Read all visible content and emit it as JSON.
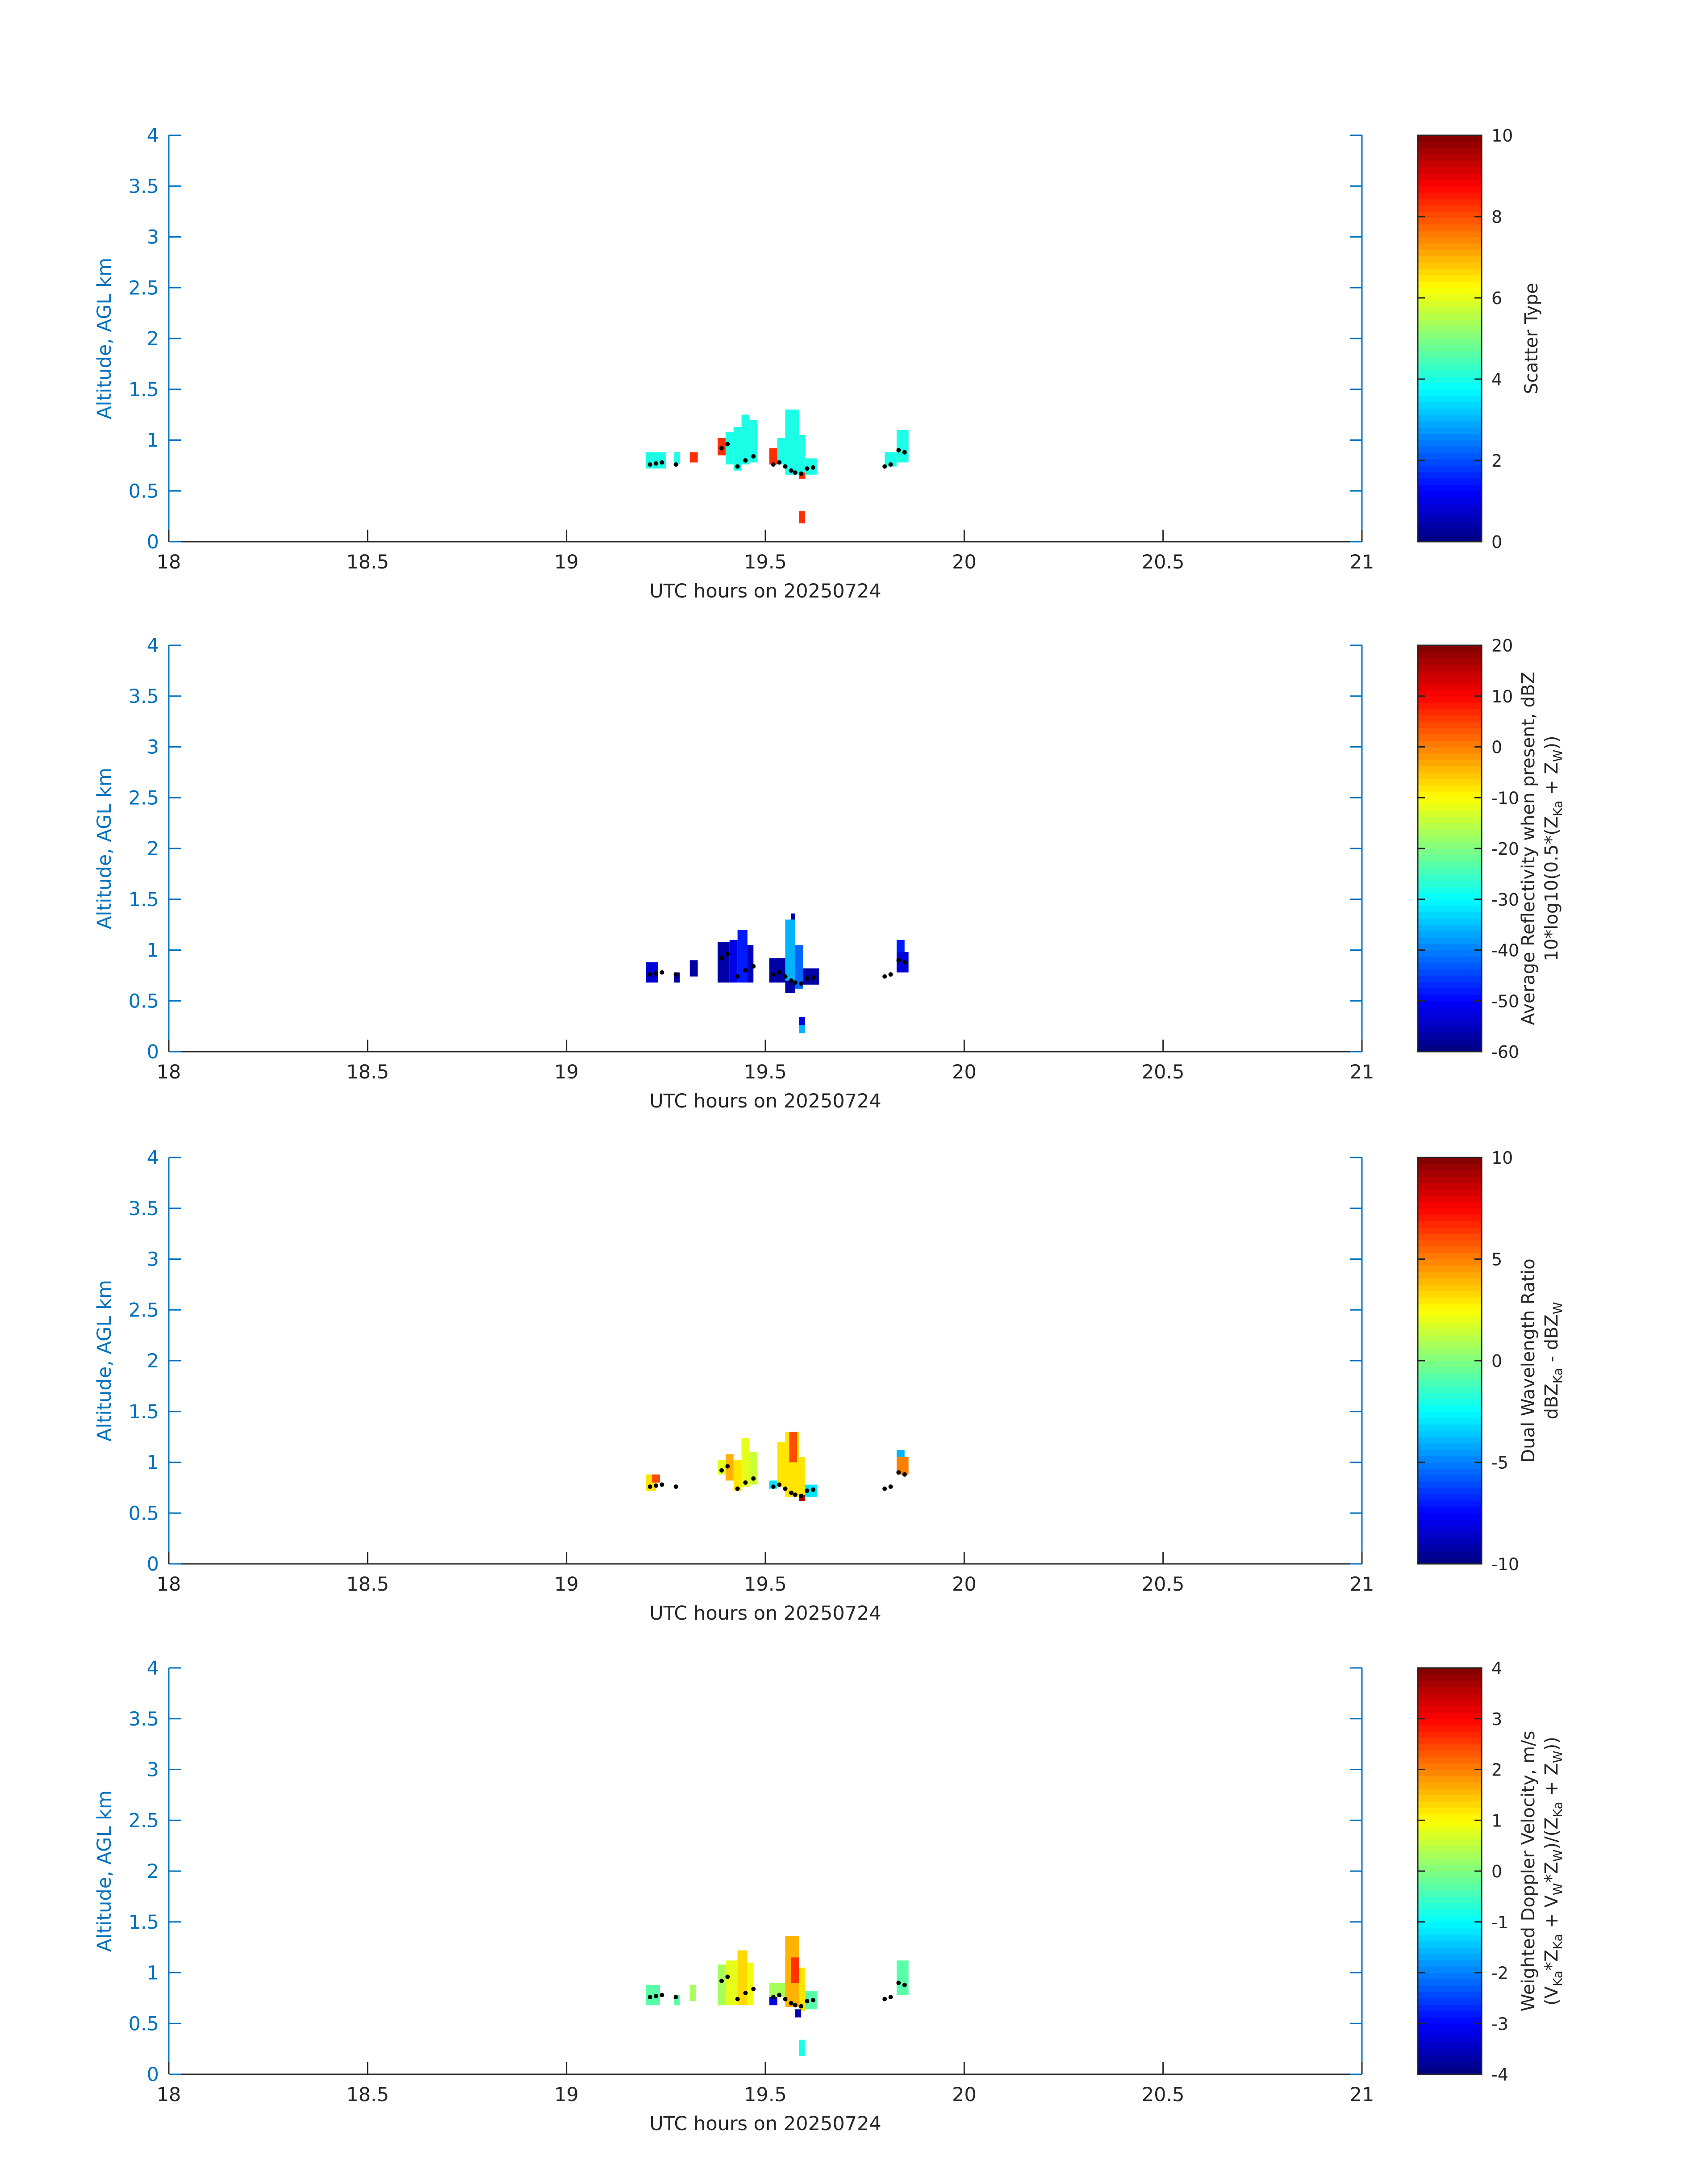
{
  "axes_color": "#0072BD",
  "colormap": "jet",
  "chart_data": [
    {
      "type": "heatmap",
      "xlabel": "UTC hours on 20250724",
      "ylabel": "Altitude, AGL km",
      "xlim": [
        18,
        21
      ],
      "ylim": [
        0,
        4
      ],
      "xticks": [
        "18",
        "18.5",
        "19",
        "19.5",
        "20",
        "20.5",
        "21"
      ],
      "yticks": [
        "0",
        "0.5",
        "1",
        "1.5",
        "2",
        "2.5",
        "3",
        "3.5",
        "4"
      ],
      "colorbar": {
        "label": [
          "Scatter Type"
        ],
        "range": [
          0,
          10
        ],
        "ticks": [
          "0",
          "2",
          "4",
          "6",
          "8",
          "10"
        ]
      },
      "cells": [
        {
          "x0": 19.2,
          "x1": 19.25,
          "y0": 0.72,
          "y1": 0.88,
          "v": 4
        },
        {
          "x0": 19.27,
          "x1": 19.285,
          "y0": 0.76,
          "y1": 0.88,
          "v": 4
        },
        {
          "x0": 19.31,
          "x1": 19.33,
          "y0": 0.78,
          "y1": 0.88,
          "v": 8.3
        },
        {
          "x0": 19.38,
          "x1": 19.4,
          "y0": 0.85,
          "y1": 1.02,
          "v": 8.3
        },
        {
          "x0": 19.4,
          "x1": 19.42,
          "y0": 0.76,
          "y1": 1.08,
          "v": 4
        },
        {
          "x0": 19.42,
          "x1": 19.44,
          "y0": 0.7,
          "y1": 1.13,
          "v": 4
        },
        {
          "x0": 19.44,
          "x1": 19.46,
          "y0": 0.76,
          "y1": 1.25,
          "v": 4
        },
        {
          "x0": 19.46,
          "x1": 19.48,
          "y0": 0.78,
          "y1": 1.2,
          "v": 4
        },
        {
          "x0": 19.51,
          "x1": 19.53,
          "y0": 0.76,
          "y1": 0.92,
          "v": 8.3
        },
        {
          "x0": 19.53,
          "x1": 19.55,
          "y0": 0.76,
          "y1": 1.02,
          "v": 4
        },
        {
          "x0": 19.55,
          "x1": 19.585,
          "y0": 0.66,
          "y1": 1.3,
          "v": 4
        },
        {
          "x0": 19.585,
          "x1": 19.6,
          "y0": 0.66,
          "y1": 1.05,
          "v": 4
        },
        {
          "x0": 19.585,
          "x1": 19.6,
          "y0": 0.62,
          "y1": 0.68,
          "v": 8.3
        },
        {
          "x0": 19.6,
          "x1": 19.63,
          "y0": 0.66,
          "y1": 0.82,
          "v": 4
        },
        {
          "x0": 19.585,
          "x1": 19.6,
          "y0": 0.18,
          "y1": 0.3,
          "v": 8.3
        },
        {
          "x0": 19.8,
          "x1": 19.83,
          "y0": 0.74,
          "y1": 0.88,
          "v": 4
        },
        {
          "x0": 19.83,
          "x1": 19.86,
          "y0": 0.78,
          "y1": 1.1,
          "v": 4
        }
      ]
    },
    {
      "type": "heatmap",
      "xlabel": "UTC hours on 20250724",
      "ylabel": "Altitude, AGL km",
      "xlim": [
        18,
        21
      ],
      "ylim": [
        0,
        4
      ],
      "xticks": [
        "18",
        "18.5",
        "19",
        "19.5",
        "20",
        "20.5",
        "21"
      ],
      "yticks": [
        "0",
        "0.5",
        "1",
        "1.5",
        "2",
        "2.5",
        "3",
        "3.5",
        "4"
      ],
      "colorbar": {
        "label": [
          "Average Reflectivity when present, dBZ",
          "10*log10(0.5*(Z",
          "Ka",
          " + Z",
          "W",
          "))"
        ],
        "range": [
          -60,
          20
        ],
        "ticks": [
          "-60",
          "-50",
          "-40",
          "-30",
          "-20",
          "-10",
          "0",
          "10",
          "20"
        ]
      },
      "cells": [
        {
          "x0": 19.2,
          "x1": 19.23,
          "y0": 0.68,
          "y1": 0.88,
          "v": -53
        },
        {
          "x0": 19.27,
          "x1": 19.285,
          "y0": 0.68,
          "y1": 0.78,
          "v": -57
        },
        {
          "x0": 19.31,
          "x1": 19.33,
          "y0": 0.74,
          "y1": 0.9,
          "v": -57
        },
        {
          "x0": 19.38,
          "x1": 19.41,
          "y0": 0.68,
          "y1": 1.08,
          "v": -57
        },
        {
          "x0": 19.41,
          "x1": 19.43,
          "y0": 0.68,
          "y1": 1.1,
          "v": -52
        },
        {
          "x0": 19.43,
          "x1": 19.455,
          "y0": 0.68,
          "y1": 1.2,
          "v": -48
        },
        {
          "x0": 19.455,
          "x1": 19.47,
          "y0": 0.68,
          "y1": 1.05,
          "v": -55
        },
        {
          "x0": 19.51,
          "x1": 19.55,
          "y0": 0.68,
          "y1": 0.92,
          "v": -57
        },
        {
          "x0": 19.55,
          "x1": 19.575,
          "y0": 0.7,
          "y1": 1.3,
          "v": -36
        },
        {
          "x0": 19.575,
          "x1": 19.595,
          "y0": 0.62,
          "y1": 1.05,
          "v": -42
        },
        {
          "x0": 19.565,
          "x1": 19.575,
          "y0": 1.3,
          "y1": 1.36,
          "v": -57
        },
        {
          "x0": 19.55,
          "x1": 19.575,
          "y0": 0.58,
          "y1": 0.7,
          "v": -57
        },
        {
          "x0": 19.595,
          "x1": 19.635,
          "y0": 0.66,
          "y1": 0.82,
          "v": -57
        },
        {
          "x0": 19.585,
          "x1": 19.6,
          "y0": 0.18,
          "y1": 0.26,
          "v": -36
        },
        {
          "x0": 19.585,
          "x1": 19.6,
          "y0": 0.26,
          "y1": 0.34,
          "v": -52
        },
        {
          "x0": 19.83,
          "x1": 19.86,
          "y0": 0.78,
          "y1": 0.98,
          "v": -53
        },
        {
          "x0": 19.83,
          "x1": 19.85,
          "y0": 0.98,
          "y1": 1.1,
          "v": -48
        }
      ]
    },
    {
      "type": "heatmap",
      "xlabel": "UTC hours on 20250724",
      "ylabel": "Altitude, AGL km",
      "xlim": [
        18,
        21
      ],
      "ylim": [
        0,
        4
      ],
      "xticks": [
        "18",
        "18.5",
        "19",
        "19.5",
        "20",
        "20.5",
        "21"
      ],
      "yticks": [
        "0",
        "0.5",
        "1",
        "1.5",
        "2",
        "2.5",
        "3",
        "3.5",
        "4"
      ],
      "colorbar": {
        "label": [
          "Dual Wavelength Ratio",
          "dBZ",
          "Ka",
          " - dBZ",
          "W",
          ""
        ],
        "range": [
          -10,
          10
        ],
        "ticks": [
          "-10",
          "-5",
          "0",
          "5",
          "10"
        ]
      },
      "cells": [
        {
          "x0": 19.2,
          "x1": 19.225,
          "y0": 0.72,
          "y1": 0.88,
          "v": 3
        },
        {
          "x0": 19.215,
          "x1": 19.235,
          "y0": 0.8,
          "y1": 0.88,
          "v": 6
        },
        {
          "x0": 19.38,
          "x1": 19.4,
          "y0": 0.88,
          "y1": 1.02,
          "v": 2
        },
        {
          "x0": 19.4,
          "x1": 19.42,
          "y0": 0.82,
          "y1": 1.08,
          "v": 4
        },
        {
          "x0": 19.42,
          "x1": 19.44,
          "y0": 0.72,
          "y1": 1.02,
          "v": 3
        },
        {
          "x0": 19.44,
          "x1": 19.46,
          "y0": 0.76,
          "y1": 1.24,
          "v": 2
        },
        {
          "x0": 19.46,
          "x1": 19.48,
          "y0": 0.78,
          "y1": 1.1,
          "v": 1.5
        },
        {
          "x0": 19.51,
          "x1": 19.53,
          "y0": 0.74,
          "y1": 0.82,
          "v": -3
        },
        {
          "x0": 19.53,
          "x1": 19.55,
          "y0": 0.76,
          "y1": 1.2,
          "v": 3
        },
        {
          "x0": 19.55,
          "x1": 19.585,
          "y0": 0.66,
          "y1": 1.3,
          "v": 3
        },
        {
          "x0": 19.56,
          "x1": 19.58,
          "y0": 1.0,
          "y1": 1.3,
          "v": 6
        },
        {
          "x0": 19.585,
          "x1": 19.6,
          "y0": 0.62,
          "y1": 1.05,
          "v": 3
        },
        {
          "x0": 19.585,
          "x1": 19.6,
          "y0": 0.62,
          "y1": 0.68,
          "v": 9
        },
        {
          "x0": 19.6,
          "x1": 19.63,
          "y0": 0.66,
          "y1": 0.78,
          "v": -3
        },
        {
          "x0": 19.83,
          "x1": 19.86,
          "y0": 0.88,
          "y1": 1.05,
          "v": 5
        },
        {
          "x0": 19.83,
          "x1": 19.85,
          "y0": 1.05,
          "y1": 1.12,
          "v": -4
        }
      ]
    },
    {
      "type": "heatmap",
      "xlabel": "UTC hours on 20250724",
      "ylabel": "Altitude, AGL km",
      "xlim": [
        18,
        21
      ],
      "ylim": [
        0,
        4
      ],
      "xticks": [
        "18",
        "18.5",
        "19",
        "19.5",
        "20",
        "20.5",
        "21"
      ],
      "yticks": [
        "0",
        "0.5",
        "1",
        "1.5",
        "2",
        "2.5",
        "3",
        "3.5",
        "4"
      ],
      "colorbar": {
        "label": [
          "Weighted Doppler Velocity, m/s",
          "(V",
          "Ka",
          "*Z",
          "Ka",
          " + V",
          "W",
          "*Z",
          "W",
          ")/(Z",
          "Ka",
          " + Z",
          "W",
          "))"
        ],
        "range": [
          -4,
          4
        ],
        "ticks": [
          "-4",
          "-3",
          "-2",
          "-1",
          "0",
          "1",
          "2",
          "3",
          "4"
        ]
      },
      "cells": [
        {
          "x0": 19.2,
          "x1": 19.235,
          "y0": 0.68,
          "y1": 0.88,
          "v": -0.3
        },
        {
          "x0": 19.27,
          "x1": 19.285,
          "y0": 0.68,
          "y1": 0.78,
          "v": -0.3
        },
        {
          "x0": 19.31,
          "x1": 19.325,
          "y0": 0.72,
          "y1": 0.88,
          "v": 0.3
        },
        {
          "x0": 19.38,
          "x1": 19.4,
          "y0": 0.68,
          "y1": 1.08,
          "v": 0.3
        },
        {
          "x0": 19.4,
          "x1": 19.43,
          "y0": 0.68,
          "y1": 1.12,
          "v": 0.8
        },
        {
          "x0": 19.43,
          "x1": 19.455,
          "y0": 0.68,
          "y1": 1.22,
          "v": 1.3
        },
        {
          "x0": 19.455,
          "x1": 19.47,
          "y0": 0.68,
          "y1": 1.1,
          "v": 0.9
        },
        {
          "x0": 19.51,
          "x1": 19.53,
          "y0": 0.68,
          "y1": 0.78,
          "v": -3.2
        },
        {
          "x0": 19.51,
          "x1": 19.55,
          "y0": 0.76,
          "y1": 0.9,
          "v": 0.3
        },
        {
          "x0": 19.55,
          "x1": 19.585,
          "y0": 0.66,
          "y1": 1.36,
          "v": 1.6
        },
        {
          "x0": 19.565,
          "x1": 19.585,
          "y0": 0.9,
          "y1": 1.15,
          "v": 2.6
        },
        {
          "x0": 19.585,
          "x1": 19.6,
          "y0": 0.62,
          "y1": 1.05,
          "v": 1.2
        },
        {
          "x0": 19.575,
          "x1": 19.59,
          "y0": 0.56,
          "y1": 0.64,
          "v": -3.6
        },
        {
          "x0": 19.6,
          "x1": 19.63,
          "y0": 0.64,
          "y1": 0.82,
          "v": -0.3
        },
        {
          "x0": 19.585,
          "x1": 19.6,
          "y0": 0.18,
          "y1": 0.34,
          "v": -0.8
        },
        {
          "x0": 19.83,
          "x1": 19.86,
          "y0": 0.78,
          "y1": 1.12,
          "v": -0.3
        }
      ]
    }
  ],
  "black_dots": [
    {
      "x": 19.21,
      "y": 0.76
    },
    {
      "x": 19.225,
      "y": 0.77
    },
    {
      "x": 19.24,
      "y": 0.78
    },
    {
      "x": 19.275,
      "y": 0.76
    },
    {
      "x": 19.39,
      "y": 0.92
    },
    {
      "x": 19.405,
      "y": 0.96
    },
    {
      "x": 19.43,
      "y": 0.74
    },
    {
      "x": 19.45,
      "y": 0.8
    },
    {
      "x": 19.47,
      "y": 0.84
    },
    {
      "x": 19.52,
      "y": 0.76
    },
    {
      "x": 19.535,
      "y": 0.78
    },
    {
      "x": 19.55,
      "y": 0.74
    },
    {
      "x": 19.565,
      "y": 0.7
    },
    {
      "x": 19.575,
      "y": 0.68
    },
    {
      "x": 19.59,
      "y": 0.67
    },
    {
      "x": 19.605,
      "y": 0.72
    },
    {
      "x": 19.62,
      "y": 0.73
    },
    {
      "x": 19.8,
      "y": 0.74
    },
    {
      "x": 19.815,
      "y": 0.76
    },
    {
      "x": 19.835,
      "y": 0.9
    },
    {
      "x": 19.85,
      "y": 0.88
    }
  ]
}
